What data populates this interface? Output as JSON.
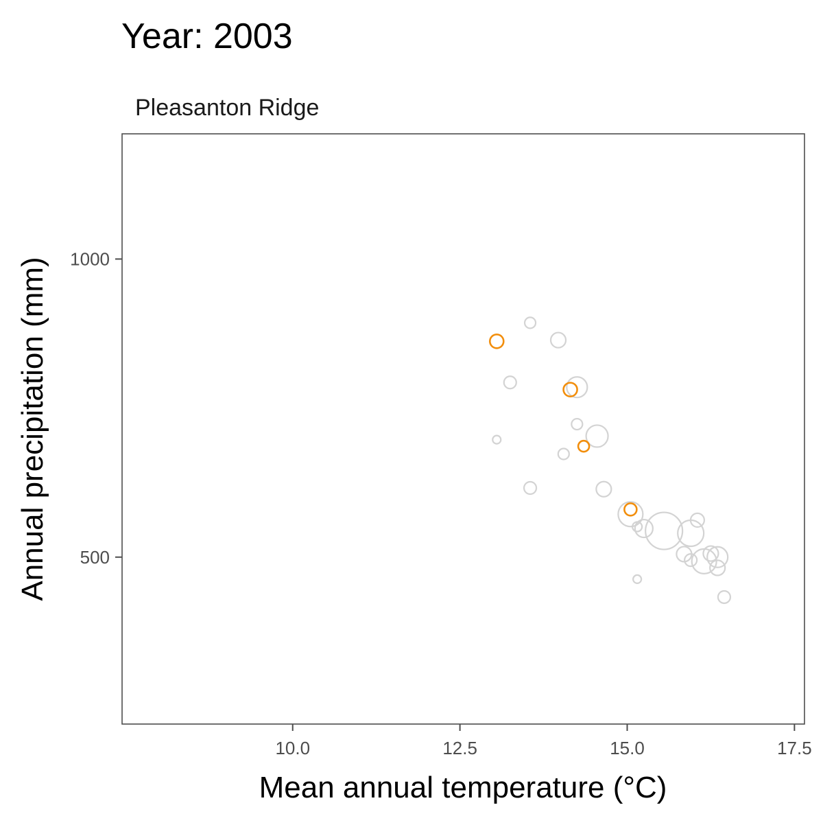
{
  "chart_data": {
    "type": "scatter",
    "title": "Year: 2003",
    "subtitle": "Pleasanton Ridge",
    "xlabel": "Mean annual temperature (°C)",
    "ylabel": "Annual precipitation (mm)",
    "xlim": [
      7.45,
      17.65
    ],
    "ylim": [
      220,
      1210
    ],
    "xticks": [
      {
        "value": 10.0,
        "label": "10.0"
      },
      {
        "value": 12.5,
        "label": "12.5"
      },
      {
        "value": 15.0,
        "label": "15.0"
      },
      {
        "value": 17.5,
        "label": "17.5"
      }
    ],
    "yticks": [
      {
        "value": 500,
        "label": "500"
      },
      {
        "value": 1000,
        "label": "1000"
      }
    ],
    "grid": false,
    "legend": "none",
    "colors": {
      "highlight": "#f28e0c",
      "background": "#d3d3d3",
      "axis": "#4d4d4d",
      "tick_label": "#4d4d4d"
    },
    "series": [
      {
        "role": "background",
        "points": [
          {
            "x": 13.55,
            "y": 893,
            "size": 8
          },
          {
            "x": 13.97,
            "y": 864,
            "size": 11
          },
          {
            "x": 13.25,
            "y": 793,
            "size": 9
          },
          {
            "x": 14.25,
            "y": 785,
            "size": 15
          },
          {
            "x": 14.25,
            "y": 723,
            "size": 8
          },
          {
            "x": 14.55,
            "y": 703,
            "size": 16
          },
          {
            "x": 13.05,
            "y": 697,
            "size": 6
          },
          {
            "x": 14.05,
            "y": 673,
            "size": 8
          },
          {
            "x": 13.55,
            "y": 616,
            "size": 9
          },
          {
            "x": 14.65,
            "y": 614,
            "size": 11
          },
          {
            "x": 15.05,
            "y": 572,
            "size": 18
          },
          {
            "x": 15.15,
            "y": 551,
            "size": 7
          },
          {
            "x": 15.25,
            "y": 548,
            "size": 13
          },
          {
            "x": 15.55,
            "y": 544,
            "size": 27
          },
          {
            "x": 15.95,
            "y": 540,
            "size": 19
          },
          {
            "x": 16.05,
            "y": 562,
            "size": 10
          },
          {
            "x": 15.85,
            "y": 505,
            "size": 11
          },
          {
            "x": 15.95,
            "y": 495,
            "size": 9
          },
          {
            "x": 16.15,
            "y": 493,
            "size": 18
          },
          {
            "x": 16.25,
            "y": 506,
            "size": 11
          },
          {
            "x": 16.35,
            "y": 500,
            "size": 15
          },
          {
            "x": 16.35,
            "y": 482,
            "size": 11
          },
          {
            "x": 15.15,
            "y": 463,
            "size": 6
          },
          {
            "x": 16.45,
            "y": 433,
            "size": 9
          }
        ]
      },
      {
        "role": "highlight",
        "points": [
          {
            "x": 13.05,
            "y": 862,
            "size": 10
          },
          {
            "x": 14.15,
            "y": 781,
            "size": 10
          },
          {
            "x": 14.35,
            "y": 686,
            "size": 8
          },
          {
            "x": 15.05,
            "y": 580,
            "size": 9
          }
        ]
      }
    ]
  }
}
